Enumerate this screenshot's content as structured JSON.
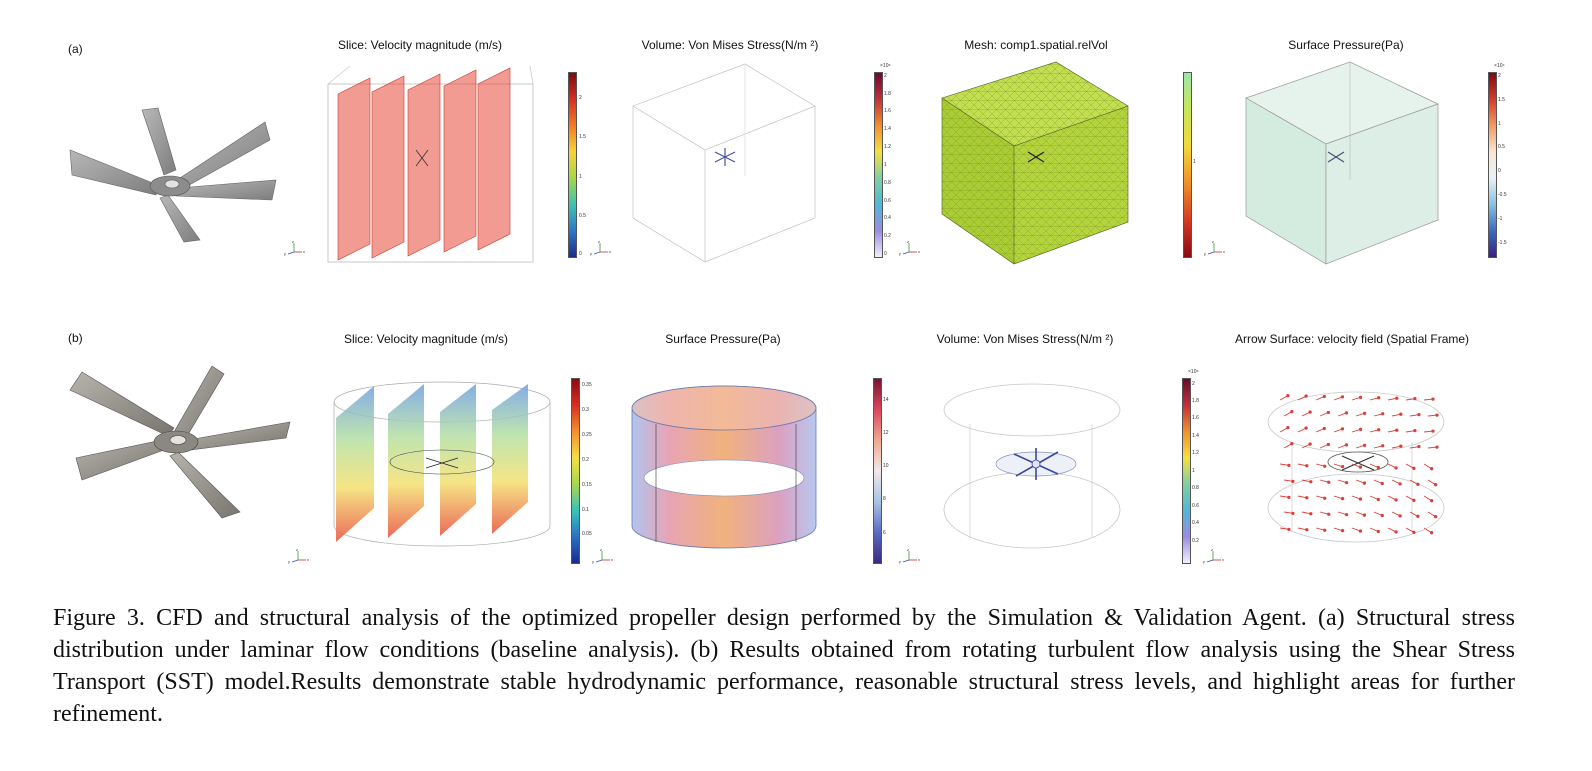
{
  "row_a": {
    "label": "(a)",
    "panels": [
      {
        "title": "Slice: Velocity magnitude (m/s)",
        "colorbar": {
          "multiplier": "",
          "ticks": [
            "2",
            "1.5",
            "1",
            "0.5",
            "0"
          ]
        }
      },
      {
        "title": "Volume: Von Mises Stress(N/m ²)",
        "colorbar": {
          "multiplier": "×10⁶",
          "ticks": [
            "2",
            "1.8",
            "1.6",
            "1.4",
            "1.2",
            "1",
            "0.8",
            "0.6",
            "0.4",
            "0.2",
            "0"
          ]
        }
      },
      {
        "title": "Mesh: comp1.spatial.relVol",
        "colorbar": {
          "multiplier": "",
          "ticks": [
            "1"
          ]
        }
      },
      {
        "title": "Surface Pressure(Pa)",
        "colorbar": {
          "multiplier": "×10⁴",
          "ticks": [
            "2",
            "1.5",
            "1",
            "0.5",
            "0",
            "-0.5",
            "-1",
            "-1.5"
          ]
        }
      }
    ]
  },
  "row_b": {
    "label": "(b)",
    "panels": [
      {
        "title": "Slice: Velocity magnitude (m/s)",
        "colorbar": {
          "multiplier": "",
          "ticks": [
            "0.35",
            "0.3",
            "0.25",
            "0.2",
            "0.15",
            "0.1",
            "0.05"
          ]
        }
      },
      {
        "title": "Surface Pressure(Pa)",
        "colorbar": {
          "multiplier": "",
          "ticks": [
            "14",
            "12",
            "10",
            "8",
            "6"
          ]
        }
      },
      {
        "title": "Volume: Von Mises Stress(N/m ²)",
        "colorbar": {
          "multiplier": "×10⁶",
          "ticks": [
            "2",
            "1.8",
            "1.6",
            "1.4",
            "1.2",
            "1",
            "0.8",
            "0.6",
            "0.4",
            "0.2"
          ]
        }
      },
      {
        "title": "Arrow Surface: velocity field (Spatial Frame)"
      }
    ]
  },
  "triad_labels": {
    "x": "x",
    "y": "y",
    "z": "z"
  },
  "caption": "Figure 3. CFD and structural analysis of the optimized propeller design performed by the Simulation & Validation Agent. (a) Structural stress distribution under laminar flow conditions (baseline analysis).  (b) Results obtained from rotating turbulent flow analysis using the Shear Stress Transport (SST) model.Results demonstrate stable hydrodynamic performance, reasonable structural stress levels, and highlight areas for further refinement.",
  "colors": {
    "velocity_red": "#e8483a",
    "mesh_green": "#b6d63c",
    "pressure_mint": "#d8ece4",
    "propeller_gray": "#9a9a9a",
    "arrow_red": "#d9413a"
  }
}
